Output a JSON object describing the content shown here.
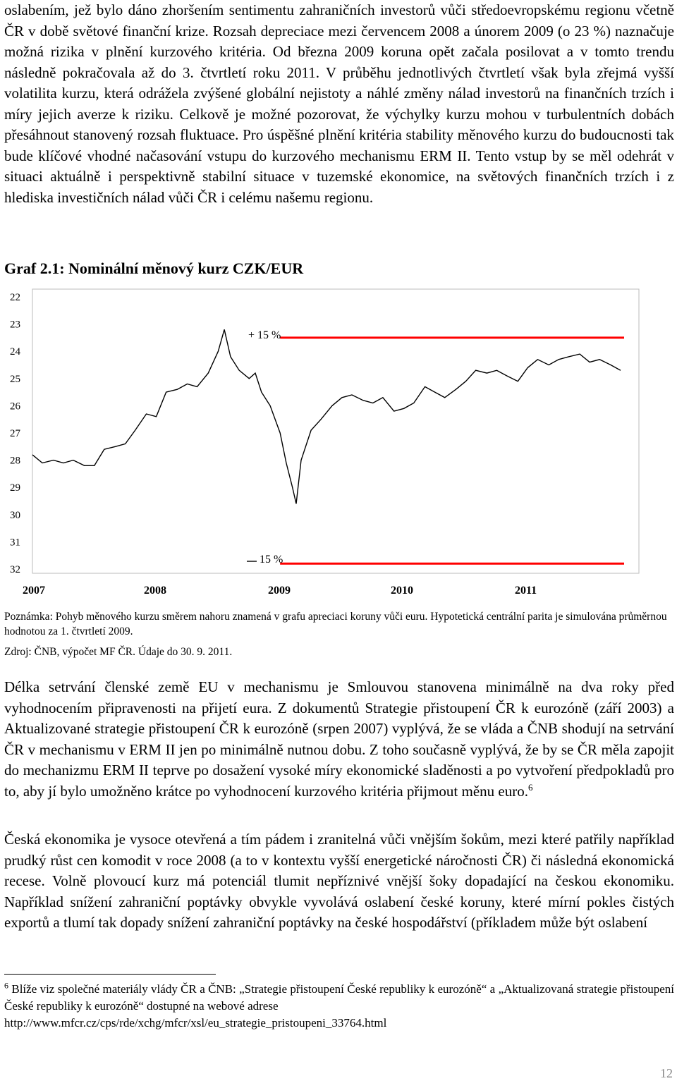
{
  "paragraphs": {
    "p1": "oslabením, jež bylo dáno zhoršením sentimentu zahraničních investorů vůči středoevropskému regionu včetně ČR v době světové finanční krize. Rozsah depreciace mezi červencem 2008 a únorem 2009 (o 23 %) naznačuje možná rizika v plnění kurzového kritéria. Od března 2009 koruna opět začala posilovat a v tomto trendu následně pokračovala až do 3. čtvrtletí roku 2011. V průběhu jednotlivých čtvrtletí však byla zřejmá vyšší volatilita kurzu, která odrážela zvýšené globální nejistoty a náhlé změny nálad investorů na finančních trzích i míry jejich averze k riziku. Celkově je možné pozorovat, že výchylky kurzu mohou v turbulentních dobách přesáhnout stanovený rozsah fluktuace. Pro úspěšné plnění kritéria stability měnového kurzu do budoucnosti tak bude klíčové vhodné načasování vstupu do kurzového mechanismu ERM II. Tento vstup by se měl odehrát v situaci aktuálně i perspektivně stabilní situace v tuzemské ekonomice, na světových finančních trzích i z hlediska investičních nálad vůči ČR i celému našemu regionu.",
    "p2": "Délka setrvání členské země EU v mechanismu je Smlouvou stanovena minimálně na dva roky před vyhodnocením připravenosti na přijetí eura. Z dokumentů Strategie přistoupení ČR k eurozóně (září 2003) a Aktualizované strategie přistoupení ČR k eurozóně (srpen 2007) vyplývá, že se vláda a ČNB shodují na setrvání ČR v mechanismu v ERM II jen po minimálně nutnou dobu. Z toho současně vyplývá, že by se ČR měla zapojit do mechanizmu ERM II teprve po dosažení vysoké míry ekonomické sladěnosti a po vytvoření předpokladů pro to, aby jí bylo umožněno krátce po vyhodnocení kurzového kritéria přijmout měnu euro.",
    "p2_sup": "6",
    "p3": "Česká ekonomika je vysoce otevřená a tím pádem i zranitelná vůči vnějším šokům, mezi které patřily například prudký růst cen komodit v roce 2008 (a to v kontextu vyšší energetické náročnosti ČR) či následná ekonomická recese. Volně plovoucí kurz má potenciál tlumit nepříznivé vnější šoky dopadající na českou ekonomiku. Například snížení zahraniční poptávky obvykle vyvolává oslabení české koruny, které mírní pokles čistých exportů a tlumí tak dopady snížení zahraniční poptávky na české hospodářství (příkladem může být oslabení"
  },
  "graph": {
    "title": "Graf 2.1: Nominální měnový kurz CZK/EUR",
    "note": "Poznámka: Pohyb měnového kurzu směrem nahoru znamená v grafu apreciaci koruny vůči euru. Hypotetická centrální parita je simulována průměrnou hodnotou za 1. čtvrtletí 2009.",
    "source": "Zdroj: ČNB, výpočet MF ČR. Údaje do 30. 9. 2011."
  },
  "chart_data": {
    "type": "line",
    "title": "Graf 2.1: Nominální měnový kurz CZK/EUR",
    "y_axis": {
      "ticks": [
        22,
        23,
        24,
        25,
        26,
        27,
        28,
        29,
        30,
        31,
        32
      ],
      "inverted": true,
      "ylim": [
        22,
        32
      ]
    },
    "x_axis": {
      "ticks": [
        "2007",
        "2008",
        "2009",
        "2010",
        "2011"
      ],
      "xlim": [
        2007.0,
        2011.75
      ]
    },
    "series": [
      {
        "color": "#000000",
        "x": [
          2007.0,
          2007.08,
          2007.17,
          2007.25,
          2007.33,
          2007.42,
          2007.5,
          2007.58,
          2007.67,
          2007.75,
          2007.83,
          2007.92,
          2008.0,
          2008.08,
          2008.17,
          2008.25,
          2008.33,
          2008.42,
          2008.5,
          2008.55,
          2008.6,
          2008.67,
          2008.75,
          2008.8,
          2008.85,
          2008.92,
          2009.0,
          2009.05,
          2009.1,
          2009.13,
          2009.17,
          2009.25,
          2009.33,
          2009.42,
          2009.5,
          2009.58,
          2009.67,
          2009.75,
          2009.83,
          2009.92,
          2010.0,
          2010.08,
          2010.17,
          2010.25,
          2010.33,
          2010.42,
          2010.5,
          2010.58,
          2010.67,
          2010.75,
          2010.83,
          2010.92,
          2011.0,
          2011.08,
          2011.17,
          2011.25,
          2011.33,
          2011.42,
          2011.5,
          2011.58,
          2011.67,
          2011.75
        ],
        "y": [
          27.8,
          28.1,
          28.0,
          28.1,
          28.0,
          28.2,
          28.2,
          27.6,
          27.5,
          27.4,
          26.9,
          26.3,
          26.4,
          25.5,
          25.4,
          25.2,
          25.3,
          24.8,
          24.0,
          23.2,
          24.2,
          24.7,
          25.0,
          24.8,
          25.5,
          26.0,
          27.0,
          28.1,
          29.0,
          29.6,
          28.0,
          26.9,
          26.5,
          26.0,
          25.7,
          25.6,
          25.8,
          25.9,
          25.7,
          26.2,
          26.1,
          25.9,
          25.3,
          25.5,
          25.7,
          25.4,
          25.1,
          24.7,
          24.8,
          24.7,
          24.9,
          25.1,
          24.6,
          24.3,
          24.5,
          24.3,
          24.2,
          24.1,
          24.4,
          24.3,
          24.5,
          24.7
        ]
      }
    ],
    "reference_lines": [
      {
        "y": 23.5,
        "color": "#ff0000"
      },
      {
        "y": 31.8,
        "color": "#ff0000"
      }
    ],
    "annotations": [
      "+ 15 %",
      "– 15 %"
    ]
  },
  "footnote": {
    "number": "6",
    "text": "Blíže viz společné materiály vlády ČR a ČNB: „Strategie přistoupení České republiky k eurozóně“ a „Aktualizovaná strategie přistoupení České republiky k eurozóně“ dostupné na webové adrese",
    "url": "http://www.mfcr.cz/cps/rde/xchg/mfcr/xsl/eu_strategie_pristoupeni_33764.html"
  },
  "page_number": "12"
}
